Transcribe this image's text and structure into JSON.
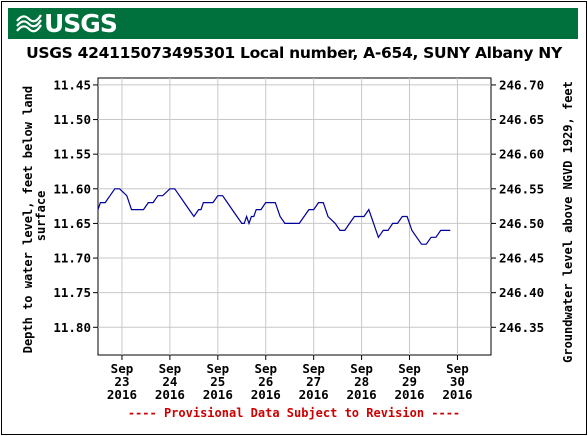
{
  "banner": {
    "logo_text": "USGS",
    "color": "#00703c"
  },
  "chart_data": {
    "type": "line",
    "title": "USGS 424115073495301 Local number, A-654, SUNY Albany NY",
    "ylabel_left": "Depth to water level, feet below land surface",
    "ylabel_right": "Groundwater level above NGVD 1929, feet",
    "left_axis": {
      "ylim": [
        11.84,
        11.44
      ],
      "ticks": [
        "11.45",
        "11.50",
        "11.55",
        "11.60",
        "11.65",
        "11.70",
        "11.75",
        "11.80"
      ],
      "tick_values": [
        11.45,
        11.5,
        11.55,
        11.6,
        11.65,
        11.7,
        11.75,
        11.8
      ],
      "inverted": true
    },
    "right_axis": {
      "ticks": [
        "246.70",
        "246.65",
        "246.60",
        "246.55",
        "246.50",
        "246.45",
        "246.40",
        "246.35"
      ],
      "tick_values": [
        246.7,
        246.65,
        246.6,
        246.55,
        246.5,
        246.45,
        246.4,
        246.35
      ]
    },
    "x_axis": {
      "range_days": [
        22.5,
        30.7
      ],
      "ticks": [
        {
          "day": 23,
          "month": "Sep",
          "date": "23",
          "year": "2016"
        },
        {
          "day": 24,
          "month": "Sep",
          "date": "24",
          "year": "2016"
        },
        {
          "day": 25,
          "month": "Sep",
          "date": "25",
          "year": "2016"
        },
        {
          "day": 26,
          "month": "Sep",
          "date": "26",
          "year": "2016"
        },
        {
          "day": 27,
          "month": "Sep",
          "date": "27",
          "year": "2016"
        },
        {
          "day": 28,
          "month": "Sep",
          "date": "28",
          "year": "2016"
        },
        {
          "day": 29,
          "month": "Sep",
          "date": "29",
          "year": "2016"
        },
        {
          "day": 30,
          "month": "Sep",
          "date": "30",
          "year": "2016"
        }
      ]
    },
    "grid": true,
    "series": [
      {
        "color": "#000099",
        "x_days": [
          22.5,
          22.55,
          22.65,
          22.75,
          22.85,
          22.95,
          23.1,
          23.2,
          23.35,
          23.45,
          23.55,
          23.65,
          23.75,
          23.85,
          24.0,
          24.1,
          24.2,
          24.3,
          24.4,
          24.5,
          24.6,
          24.65,
          24.7,
          24.8,
          24.9,
          25.0,
          25.1,
          25.2,
          25.3,
          25.4,
          25.5,
          25.55,
          25.6,
          25.65,
          25.7,
          25.75,
          25.8,
          25.9,
          26.0,
          26.1,
          26.2,
          26.3,
          26.4,
          26.5,
          26.6,
          26.7,
          26.8,
          26.9,
          27.0,
          27.1,
          27.2,
          27.3,
          27.45,
          27.55,
          27.65,
          27.75,
          27.85,
          27.95,
          28.05,
          28.15,
          28.2,
          28.25,
          28.3,
          28.35,
          28.45,
          28.55,
          28.65,
          28.75,
          28.85,
          28.95,
          29.05,
          29.15,
          29.25,
          29.35,
          29.45,
          29.55,
          29.65,
          29.75,
          29.85
        ],
        "y_depth": [
          11.63,
          11.62,
          11.62,
          11.61,
          11.6,
          11.6,
          11.61,
          11.63,
          11.63,
          11.63,
          11.62,
          11.62,
          11.61,
          11.61,
          11.6,
          11.6,
          11.61,
          11.62,
          11.63,
          11.64,
          11.63,
          11.63,
          11.62,
          11.62,
          11.62,
          11.61,
          11.61,
          11.62,
          11.63,
          11.64,
          11.65,
          11.65,
          11.64,
          11.65,
          11.64,
          11.64,
          11.63,
          11.63,
          11.62,
          11.62,
          11.62,
          11.64,
          11.65,
          11.65,
          11.65,
          11.65,
          11.64,
          11.63,
          11.63,
          11.62,
          11.62,
          11.64,
          11.65,
          11.66,
          11.66,
          11.65,
          11.64,
          11.64,
          11.64,
          11.63,
          11.64,
          11.65,
          11.66,
          11.67,
          11.66,
          11.66,
          11.65,
          11.65,
          11.64,
          11.64,
          11.66,
          11.67,
          11.68,
          11.68,
          11.67,
          11.67,
          11.66,
          11.66,
          11.66
        ]
      }
    ]
  },
  "footnote": "---- Provisional Data Subject to Revision ----"
}
